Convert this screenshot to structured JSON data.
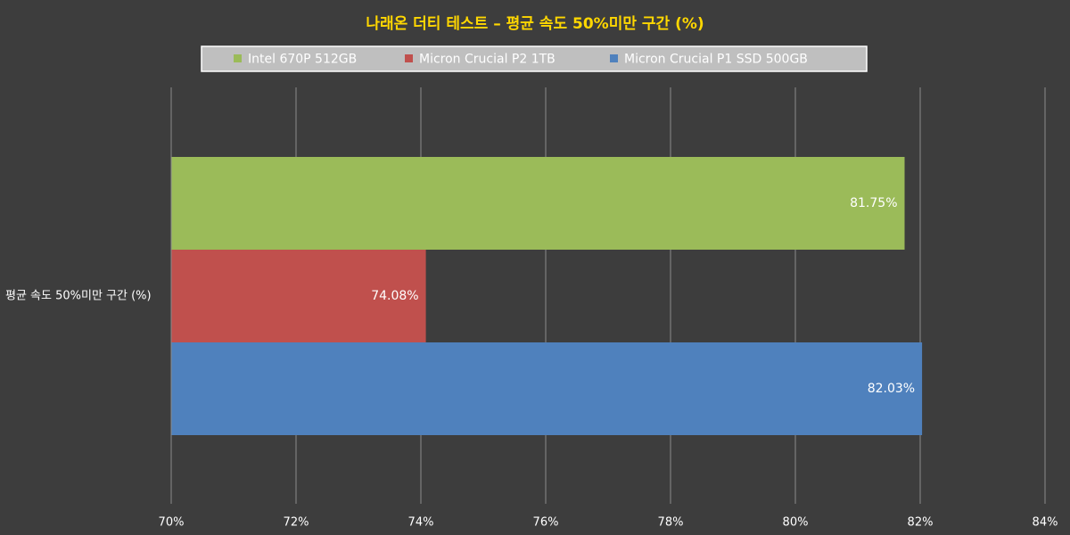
{
  "chart_data": {
    "type": "barh",
    "title": "나래온 더티 테스트 – 평균 속도 50%미만 구간 (%)",
    "categories": [
      "평균 속도 50%미만 구간 (%)"
    ],
    "series": [
      {
        "name": "Intel 670P 512GB",
        "color": "#9bbb59",
        "values": [
          81.75
        ],
        "value_labels": [
          "81.75%"
        ]
      },
      {
        "name": "Micron Crucial P2 1TB",
        "color": "#c0504d",
        "values": [
          74.08
        ],
        "value_labels": [
          "74.08%"
        ]
      },
      {
        "name": "Micron Crucial P1 SSD 500GB",
        "color": "#4f81bd",
        "values": [
          82.03
        ],
        "value_labels": [
          "82.03%"
        ]
      }
    ],
    "xlim": [
      70,
      84
    ],
    "xticks": [
      {
        "value": 70,
        "label": "70%"
      },
      {
        "value": 72,
        "label": "72%"
      },
      {
        "value": 74,
        "label": "74%"
      },
      {
        "value": 76,
        "label": "76%"
      },
      {
        "value": 78,
        "label": "78%"
      },
      {
        "value": 80,
        "label": "80%"
      },
      {
        "value": 82,
        "label": "82%"
      },
      {
        "value": 84,
        "label": "84%"
      }
    ],
    "grid": true,
    "legend": "top"
  }
}
